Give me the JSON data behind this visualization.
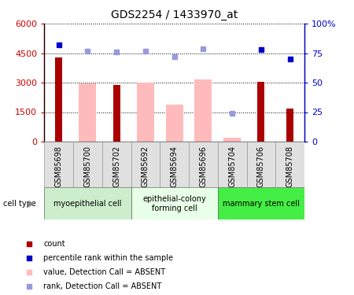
{
  "title": "GDS2254 / 1433970_at",
  "samples": [
    "GSM85698",
    "GSM85700",
    "GSM85702",
    "GSM85692",
    "GSM85694",
    "GSM85696",
    "GSM85704",
    "GSM85706",
    "GSM85708"
  ],
  "count_values": [
    4300,
    null,
    2900,
    null,
    null,
    null,
    null,
    3050,
    1700
  ],
  "absent_value_bars": [
    null,
    2950,
    null,
    3000,
    1900,
    3150,
    200,
    null,
    null
  ],
  "percentile_rank": [
    82,
    null,
    null,
    null,
    null,
    null,
    null,
    78,
    70
  ],
  "absent_rank": [
    null,
    77,
    76,
    77,
    72,
    79,
    24,
    null,
    null
  ],
  "cell_type_groups": [
    {
      "label": "myoepithelial cell",
      "start": 0,
      "end": 3,
      "color": "#cceecc"
    },
    {
      "label": "epithelial-colony\nforming cell",
      "start": 3,
      "end": 6,
      "color": "#e8ffe8"
    },
    {
      "label": "mammary stem cell",
      "start": 6,
      "end": 9,
      "color": "#44ee44"
    }
  ],
  "ylim_left": [
    0,
    6000
  ],
  "ylim_right": [
    0,
    100
  ],
  "left_ticks": [
    0,
    1500,
    3000,
    4500,
    6000
  ],
  "right_ticks": [
    0,
    25,
    50,
    75,
    100
  ],
  "left_tick_labels": [
    "0",
    "1500",
    "3000",
    "4500",
    "6000"
  ],
  "right_tick_labels": [
    "0",
    "25",
    "50",
    "75",
    "100%"
  ],
  "color_count": "#aa0000",
  "color_absent_value": "#ffbbbb",
  "color_rank_present": "#0000cc",
  "color_rank_absent": "#9999dd",
  "legend_items": [
    {
      "color": "#aa0000",
      "label": "count"
    },
    {
      "color": "#0000cc",
      "label": "percentile rank within the sample"
    },
    {
      "color": "#ffbbbb",
      "label": "value, Detection Call = ABSENT"
    },
    {
      "color": "#9999dd",
      "label": "rank, Detection Call = ABSENT"
    }
  ]
}
